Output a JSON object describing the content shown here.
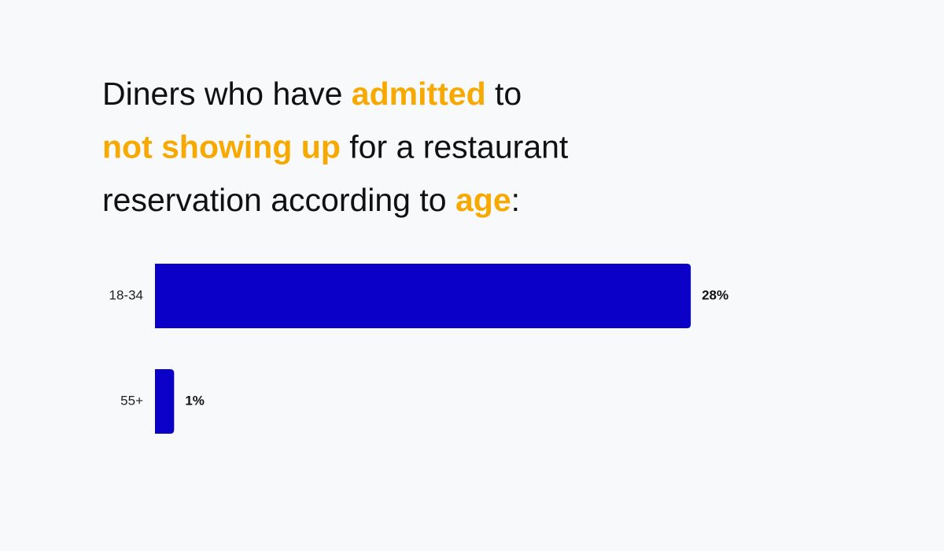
{
  "chart_data": {
    "type": "bar",
    "orientation": "horizontal",
    "title_lines": [
      [
        {
          "text": "Diners who have ",
          "highlight": false
        },
        {
          "text": "admitted",
          "highlight": true
        },
        {
          "text": " to",
          "highlight": false
        }
      ],
      [
        {
          "text": "not showing up",
          "highlight": true
        },
        {
          "text": " for a restaurant",
          "highlight": false
        }
      ],
      [
        {
          "text": "reservation according to ",
          "highlight": false
        },
        {
          "text": "age",
          "highlight": true
        },
        {
          "text": ":",
          "highlight": false
        }
      ]
    ],
    "highlight_color": "#f7a900",
    "categories": [
      "18-34",
      "55+"
    ],
    "values": [
      28,
      1
    ],
    "value_labels": [
      "28%",
      "1%"
    ],
    "color": "#0a00c8",
    "xlim": [
      0,
      40
    ]
  }
}
